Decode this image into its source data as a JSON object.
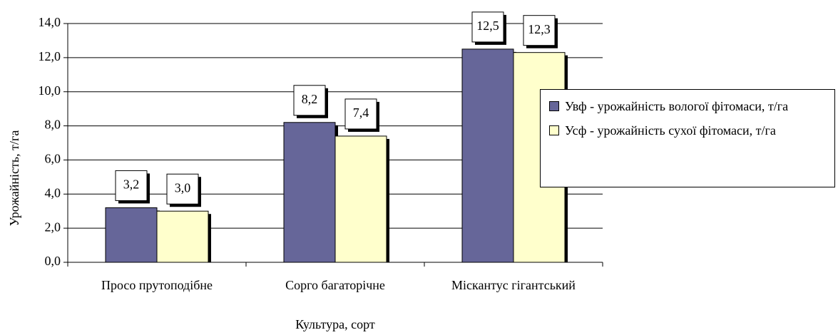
{
  "chart_data": {
    "type": "bar",
    "categories": [
      "Просо прутоподібне",
      "Сорго багаторічне",
      "Міскантус гігантський"
    ],
    "x_label": "Культура, сорт",
    "y_label": "Урожайність, т/га",
    "series": [
      {
        "name": "Увф - урожайність вологої фітомаси, т/га",
        "color": "#666699",
        "values": [
          3.2,
          8.2,
          12.5
        ],
        "value_labels": [
          "3,2",
          "8,2",
          "12,5"
        ]
      },
      {
        "name": "Усф - урожайність сухої фітомаси, т/га",
        "color": "#ffffcc",
        "values": [
          3.0,
          7.4,
          12.3
        ],
        "value_labels": [
          "3,0",
          "7,4",
          "12,3"
        ]
      }
    ],
    "ylim": [
      0,
      14
    ],
    "yticks": [
      {
        "value": 0,
        "label": "0,0"
      },
      {
        "value": 2,
        "label": "2,0"
      },
      {
        "value": 4,
        "label": "4,0"
      },
      {
        "value": 6,
        "label": "6,0"
      },
      {
        "value": 8,
        "label": "8,0"
      },
      {
        "value": 10,
        "label": "10,0"
      },
      {
        "value": 12,
        "label": "12,0"
      },
      {
        "value": 14,
        "label": "14,0"
      }
    ],
    "grid": true,
    "legend": "right"
  }
}
